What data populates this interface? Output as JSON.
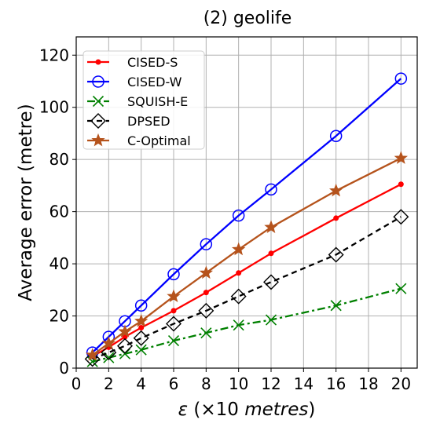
{
  "chart_data": {
    "type": "line",
    "title": "(2) geolife",
    "xlabel_italic": "ε",
    "xlabel_rest": " (×10 ",
    "xlabel_unit": "metres",
    "xlabel_close": ")",
    "ylabel": "Average error (metre)",
    "xlim": [
      0,
      21
    ],
    "ylim": [
      0,
      127
    ],
    "xticks": [
      0,
      2,
      4,
      6,
      8,
      10,
      12,
      14,
      16,
      18,
      20
    ],
    "yticks": [
      0,
      20,
      40,
      60,
      80,
      100,
      120
    ],
    "x": [
      1,
      2,
      3,
      4,
      6,
      8,
      10,
      12,
      16,
      20
    ],
    "grid": true,
    "legend_position": "top-left",
    "series": [
      {
        "name": "CISED-S",
        "color": "#ff0000",
        "dash": "",
        "marker": "dot",
        "values": [
          4.5,
          8,
          12,
          15.5,
          22,
          29,
          36.5,
          44,
          57.5,
          70.5
        ]
      },
      {
        "name": "CISED-W",
        "color": "#0000ff",
        "dash": "",
        "marker": "circle",
        "values": [
          6,
          12,
          18,
          24,
          36,
          47.5,
          58.5,
          68.5,
          89,
          111
        ]
      },
      {
        "name": "SQUISH-E",
        "color": "#008000",
        "dash": "10,4,3,4",
        "marker": "x",
        "values": [
          2.5,
          4,
          5.5,
          7,
          10.5,
          13.5,
          16.5,
          18.5,
          24,
          30.5
        ]
      },
      {
        "name": "DPSED",
        "color": "#000000",
        "dash": "7,5",
        "marker": "diamond",
        "values": [
          3.5,
          6,
          8.5,
          11.5,
          17,
          22,
          27.5,
          33,
          43.5,
          58
        ]
      },
      {
        "name": "C-Optimal",
        "color": "#b5531c",
        "dash": "",
        "marker": "star",
        "values": [
          5,
          9.5,
          14,
          18,
          27.5,
          36.5,
          45.5,
          54,
          68,
          80.5
        ]
      }
    ]
  }
}
